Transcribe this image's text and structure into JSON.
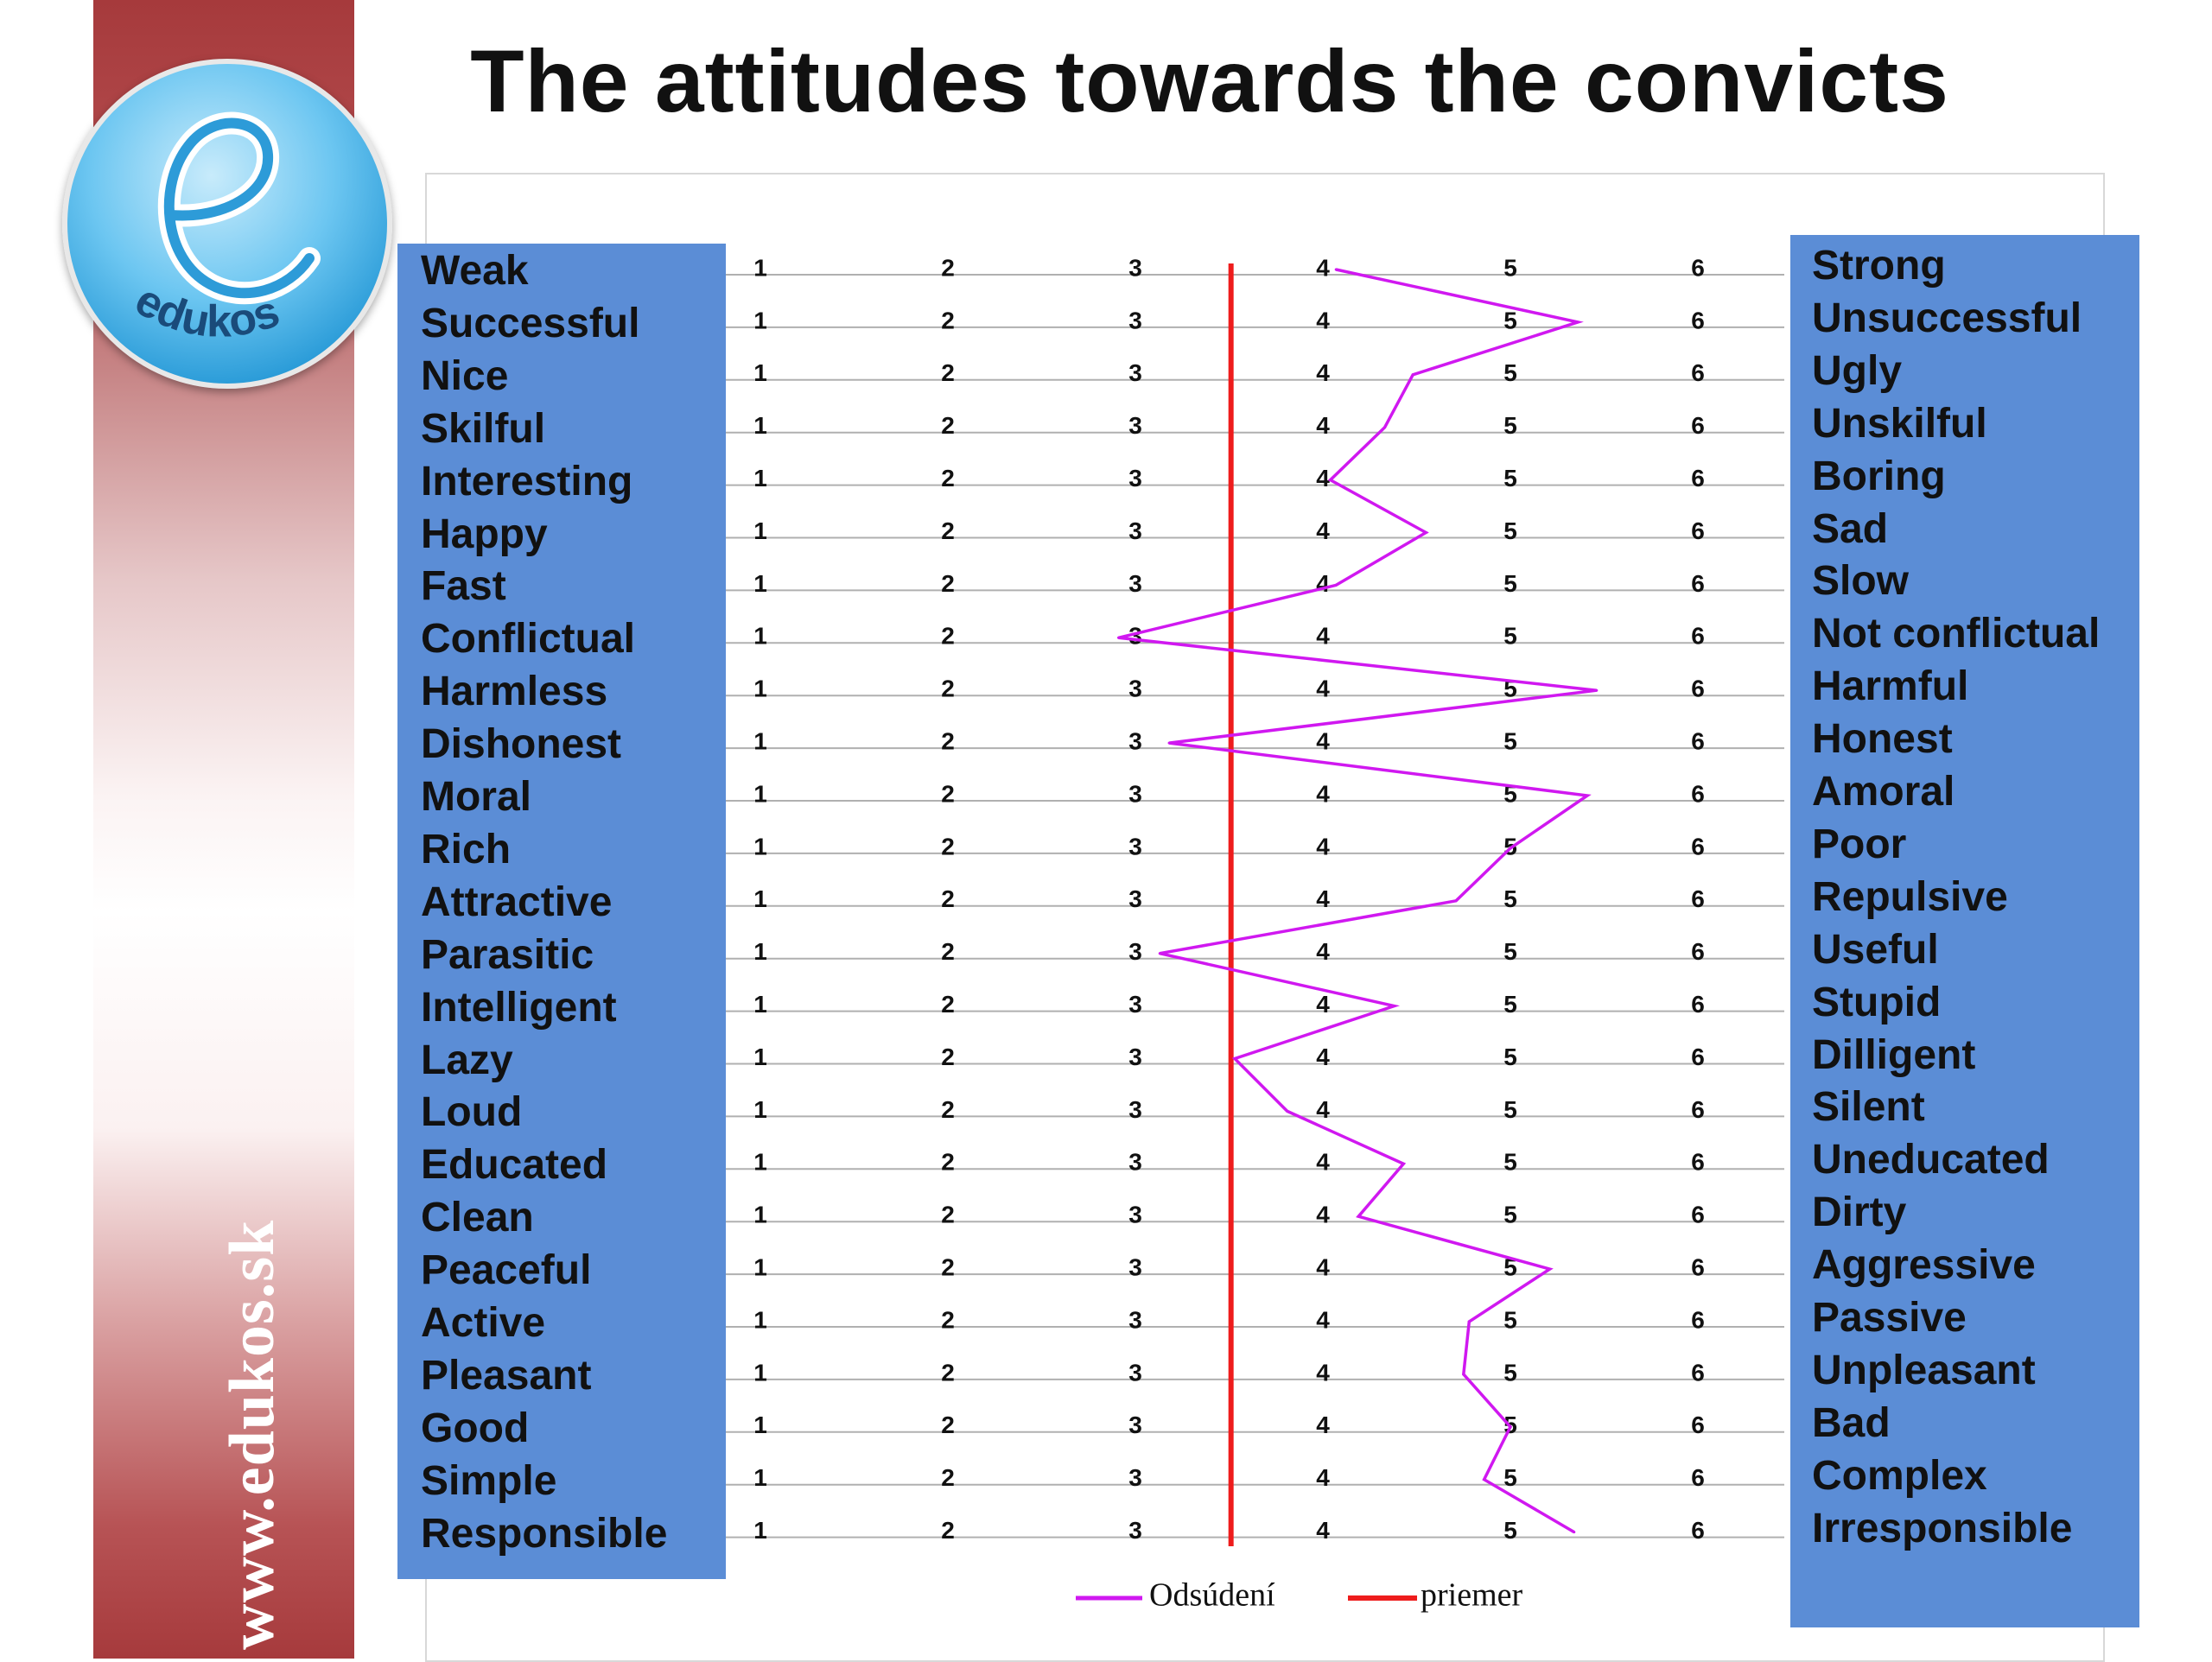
{
  "title": "The attitudes towards the convicts",
  "site_url": "www.edukos.sk",
  "logo": {
    "text": "edukos",
    "icon": "edukos-e-logo-icon"
  },
  "colors": {
    "left_panel": "#5b8dd6",
    "right_panel": "#5b8dd6",
    "series": "#d018f0",
    "mean": "#ee1c1c",
    "sidebar": "#a63a3c"
  },
  "chart_data": {
    "type": "line",
    "orientation": "horizontal-profile",
    "scale": [
      1,
      2,
      3,
      4,
      5,
      6
    ],
    "xlim": [
      1,
      6
    ],
    "grid": true,
    "legend_position": "bottom",
    "left_labels": [
      "Weak",
      "Successful",
      "Nice",
      "Skilful",
      "Interesting",
      "Happy",
      "Fast",
      "Conflictual",
      "Harmless",
      "Dishonest",
      "Moral",
      "Rich",
      "Attractive",
      "Parasitic",
      "Intelligent",
      "Lazy",
      "Loud",
      "Educated",
      "Clean",
      "Peaceful",
      "Active",
      "Pleasant",
      "Good",
      "Simple",
      "Responsible"
    ],
    "right_labels": [
      "Strong",
      "Unsuccessful",
      "Ugly",
      "Unskilful",
      "Boring",
      "Sad",
      "Slow",
      "Not conflictual",
      "Harmful",
      "Honest",
      "Amoral",
      "Poor",
      "Repulsive",
      "Useful",
      "Stupid",
      "Dilligent",
      "Silent",
      "Uneducated",
      "Dirty",
      "Aggressive",
      "Passive",
      "Unpleasant",
      "Bad",
      "Complex",
      "Irresponsible"
    ],
    "series": [
      {
        "name": "Odsúdení",
        "color": "#d018f0",
        "values": [
          4.07,
          5.36,
          4.48,
          4.33,
          4.04,
          4.55,
          4.07,
          2.91,
          5.46,
          3.18,
          5.41,
          5.0,
          4.71,
          3.13,
          4.38,
          3.53,
          3.81,
          4.43,
          4.19,
          5.21,
          4.78,
          4.75,
          5.0,
          4.86,
          5.34
        ]
      },
      {
        "name": "priemer",
        "color": "#ee1c1c",
        "constant": 3.51
      }
    ]
  }
}
